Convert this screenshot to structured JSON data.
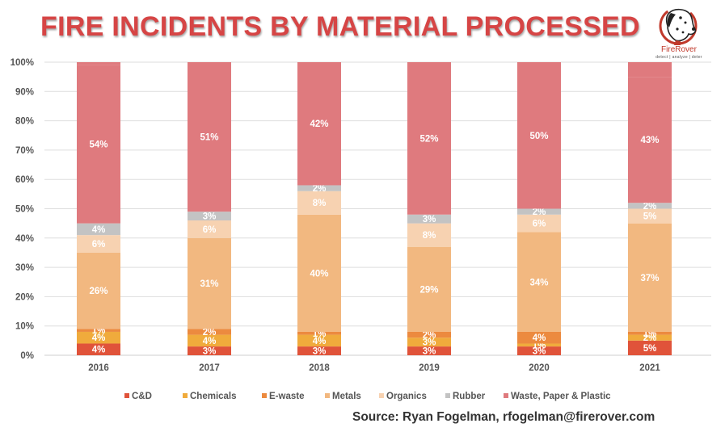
{
  "header": {
    "title": "FIRE INCIDENTS BY MATERIAL PROCESSED"
  },
  "logo": {
    "name": "FireRover",
    "tagline": "detect | analyze | deter",
    "icon": "dalmatian-dog-icon"
  },
  "source": "Source: Ryan Fogelman, rfogelman@firerover.com",
  "chart_data": {
    "type": "bar",
    "stacked": true,
    "title": "FIRE INCIDENTS BY MATERIAL PROCESSED",
    "xlabel": "",
    "ylabel": "",
    "ylim": [
      0,
      100
    ],
    "y_ticks": [
      "0%",
      "10%",
      "20%",
      "30%",
      "40%",
      "50%",
      "60%",
      "70%",
      "80%",
      "90%",
      "100%"
    ],
    "grid": true,
    "legend_position": "bottom",
    "categories": [
      "2016",
      "2017",
      "2018",
      "2019",
      "2020",
      "2021"
    ],
    "series": [
      {
        "name": "C&D",
        "color": "#e0533a",
        "values": [
          4,
          3,
          3,
          3,
          3,
          5
        ],
        "labels": [
          "4%",
          "3%",
          "3%",
          "3%",
          "3%",
          "5%"
        ]
      },
      {
        "name": "Chemicals",
        "color": "#f0ab3c",
        "values": [
          4,
          4,
          4,
          3,
          1,
          2
        ],
        "labels": [
          "4%",
          "4%",
          "4%",
          "3%",
          "1%",
          "2%"
        ]
      },
      {
        "name": "E-waste",
        "color": "#ec8a3f",
        "values": [
          1,
          2,
          1,
          2,
          4,
          1
        ],
        "labels": [
          "1%",
          "2%",
          "1%",
          "2%",
          "4%",
          "1%"
        ]
      },
      {
        "name": "Metals",
        "color": "#f2b880",
        "values": [
          26,
          31,
          40,
          29,
          34,
          37
        ],
        "labels": [
          "26%",
          "31%",
          "40%",
          "29%",
          "34%",
          "37%"
        ]
      },
      {
        "name": "Organics",
        "color": "#f7d2b1",
        "values": [
          6,
          6,
          8,
          8,
          6,
          5
        ],
        "labels": [
          "6%",
          "6%",
          "8%",
          "8%",
          "6%",
          "5%"
        ]
      },
      {
        "name": "Rubber",
        "color": "#c3c3c3",
        "values": [
          4,
          3,
          2,
          3,
          2,
          2
        ],
        "labels": [
          "4%",
          "3%",
          "2%",
          "3%",
          "2%",
          "2%"
        ]
      },
      {
        "name": "Waste, Paper & Plastic",
        "color": "#df7a7e",
        "values": [
          54,
          51,
          42,
          52,
          50,
          43
        ],
        "labels": [
          "54%",
          "51%",
          "42%",
          "52%",
          "50%",
          "43%"
        ]
      }
    ]
  }
}
